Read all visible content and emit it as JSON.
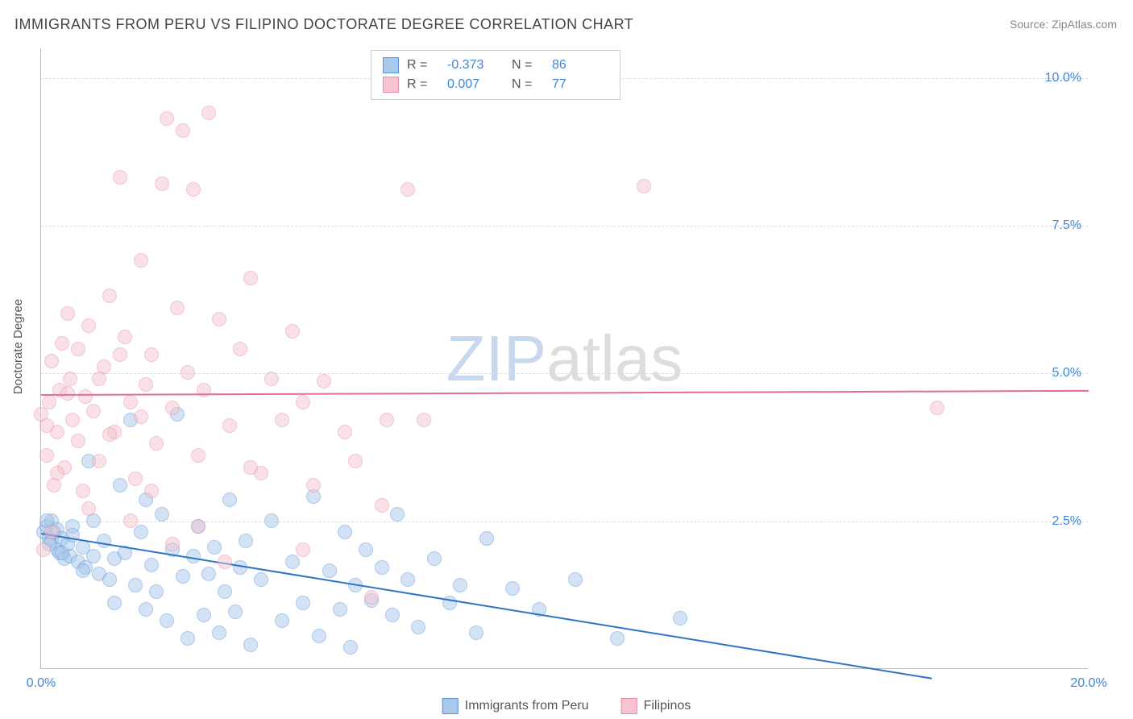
{
  "title": "IMMIGRANTS FROM PERU VS FILIPINO DOCTORATE DEGREE CORRELATION CHART",
  "source_label": "Source: ZipAtlas.com",
  "y_axis_title": "Doctorate Degree",
  "watermark": {
    "part1": "ZIP",
    "part2": "atlas"
  },
  "chart": {
    "type": "scatter",
    "xlim": [
      0,
      20
    ],
    "ylim": [
      0,
      10.5
    ],
    "x_ticks": [
      {
        "v": 0,
        "label": "0.0%"
      },
      {
        "v": 20,
        "label": "20.0%"
      }
    ],
    "y_ticks": [
      {
        "v": 2.5,
        "label": "2.5%"
      },
      {
        "v": 5.0,
        "label": "5.0%"
      },
      {
        "v": 7.5,
        "label": "7.5%"
      },
      {
        "v": 10.0,
        "label": "10.0%"
      }
    ],
    "background_color": "#ffffff",
    "grid_color": "#dddddd",
    "point_radius": 9,
    "point_opacity": 0.5,
    "series": [
      {
        "name": "Immigrants from Peru",
        "fill": "#a8c8ec",
        "stroke": "#5b93d4",
        "R": "-0.373",
        "N": "86",
        "trend": {
          "x1": 0,
          "y1": 2.3,
          "x2": 17,
          "y2": -0.15,
          "color": "#2d74c4",
          "width": 2
        },
        "points": [
          [
            0.05,
            2.3
          ],
          [
            0.1,
            2.4
          ],
          [
            0.15,
            2.2
          ],
          [
            0.2,
            2.5
          ],
          [
            0.2,
            2.15
          ],
          [
            0.25,
            2.3
          ],
          [
            0.3,
            2.0
          ],
          [
            0.3,
            2.35
          ],
          [
            0.35,
            1.95
          ],
          [
            0.4,
            2.2
          ],
          [
            0.45,
            1.85
          ],
          [
            0.5,
            2.1
          ],
          [
            0.55,
            1.9
          ],
          [
            0.6,
            2.4
          ],
          [
            0.7,
            1.8
          ],
          [
            0.8,
            2.05
          ],
          [
            0.85,
            1.7
          ],
          [
            0.9,
            3.5
          ],
          [
            1.0,
            1.9
          ],
          [
            1.1,
            1.6
          ],
          [
            1.2,
            2.15
          ],
          [
            1.3,
            1.5
          ],
          [
            1.4,
            1.85
          ],
          [
            1.5,
            3.1
          ],
          [
            1.6,
            1.95
          ],
          [
            1.7,
            4.2
          ],
          [
            1.8,
            1.4
          ],
          [
            1.9,
            2.3
          ],
          [
            2.0,
            1.0
          ],
          [
            2.1,
            1.75
          ],
          [
            2.2,
            1.3
          ],
          [
            2.3,
            2.6
          ],
          [
            2.4,
            0.8
          ],
          [
            2.5,
            2.0
          ],
          [
            2.6,
            4.3
          ],
          [
            2.7,
            1.55
          ],
          [
            2.8,
            0.5
          ],
          [
            2.9,
            1.9
          ],
          [
            3.0,
            2.4
          ],
          [
            3.1,
            0.9
          ],
          [
            3.2,
            1.6
          ],
          [
            3.3,
            2.05
          ],
          [
            3.4,
            0.6
          ],
          [
            3.5,
            1.3
          ],
          [
            3.6,
            2.85
          ],
          [
            3.7,
            0.95
          ],
          [
            3.8,
            1.7
          ],
          [
            3.9,
            2.15
          ],
          [
            4.0,
            0.4
          ],
          [
            4.2,
            1.5
          ],
          [
            4.4,
            2.5
          ],
          [
            4.6,
            0.8
          ],
          [
            4.8,
            1.8
          ],
          [
            5.0,
            1.1
          ],
          [
            5.2,
            2.9
          ],
          [
            5.3,
            0.55
          ],
          [
            5.5,
            1.65
          ],
          [
            5.7,
            1.0
          ],
          [
            5.8,
            2.3
          ],
          [
            5.9,
            0.35
          ],
          [
            6.0,
            1.4
          ],
          [
            6.2,
            2.0
          ],
          [
            6.3,
            1.15
          ],
          [
            6.5,
            1.7
          ],
          [
            6.7,
            0.9
          ],
          [
            6.8,
            2.6
          ],
          [
            7.0,
            1.5
          ],
          [
            7.2,
            0.7
          ],
          [
            7.5,
            1.85
          ],
          [
            7.8,
            1.1
          ],
          [
            8.0,
            1.4
          ],
          [
            8.3,
            0.6
          ],
          [
            8.5,
            2.2
          ],
          [
            9.0,
            1.35
          ],
          [
            9.5,
            1.0
          ],
          [
            10.2,
            1.5
          ],
          [
            11.0,
            0.5
          ],
          [
            12.2,
            0.85
          ],
          [
            0.1,
            2.5
          ],
          [
            0.15,
            2.1
          ],
          [
            0.4,
            1.95
          ],
          [
            0.6,
            2.25
          ],
          [
            0.8,
            1.65
          ],
          [
            1.0,
            2.5
          ],
          [
            1.4,
            1.1
          ],
          [
            2.0,
            2.85
          ]
        ]
      },
      {
        "name": "Filipinos",
        "fill": "#f5c4d0",
        "stroke": "#e88ba5",
        "R": "0.007",
        "N": "77",
        "trend": {
          "x1": 0,
          "y1": 4.65,
          "x2": 20,
          "y2": 4.72,
          "color": "#e16f93",
          "width": 2
        },
        "points": [
          [
            0.0,
            4.3
          ],
          [
            0.05,
            2.0
          ],
          [
            0.1,
            3.6
          ],
          [
            0.15,
            4.5
          ],
          [
            0.2,
            2.3
          ],
          [
            0.2,
            5.2
          ],
          [
            0.25,
            3.1
          ],
          [
            0.3,
            4.0
          ],
          [
            0.35,
            4.7
          ],
          [
            0.4,
            5.5
          ],
          [
            0.45,
            3.4
          ],
          [
            0.5,
            6.0
          ],
          [
            0.55,
            4.9
          ],
          [
            0.6,
            4.2
          ],
          [
            0.7,
            5.4
          ],
          [
            0.8,
            3.0
          ],
          [
            0.85,
            4.6
          ],
          [
            0.9,
            5.8
          ],
          [
            1.0,
            4.35
          ],
          [
            1.1,
            3.5
          ],
          [
            1.2,
            5.1
          ],
          [
            1.3,
            6.3
          ],
          [
            1.4,
            4.0
          ],
          [
            1.5,
            8.3
          ],
          [
            1.6,
            5.6
          ],
          [
            1.7,
            4.5
          ],
          [
            1.8,
            3.2
          ],
          [
            1.9,
            6.9
          ],
          [
            2.0,
            4.8
          ],
          [
            2.1,
            5.3
          ],
          [
            2.2,
            3.8
          ],
          [
            2.3,
            8.2
          ],
          [
            2.4,
            9.3
          ],
          [
            2.5,
            4.4
          ],
          [
            2.6,
            6.1
          ],
          [
            2.7,
            9.1
          ],
          [
            2.8,
            5.0
          ],
          [
            2.9,
            8.1
          ],
          [
            3.0,
            3.6
          ],
          [
            3.1,
            4.7
          ],
          [
            3.2,
            9.4
          ],
          [
            3.4,
            5.9
          ],
          [
            3.6,
            4.1
          ],
          [
            3.8,
            5.4
          ],
          [
            4.0,
            6.6
          ],
          [
            4.2,
            3.3
          ],
          [
            4.4,
            4.9
          ],
          [
            4.6,
            4.2
          ],
          [
            4.8,
            5.7
          ],
          [
            5.0,
            4.5
          ],
          [
            5.2,
            3.1
          ],
          [
            5.4,
            4.85
          ],
          [
            5.8,
            4.0
          ],
          [
            6.0,
            3.5
          ],
          [
            6.3,
            1.2
          ],
          [
            6.6,
            4.2
          ],
          [
            7.0,
            8.1
          ],
          [
            7.3,
            4.2
          ],
          [
            11.5,
            8.15
          ],
          [
            17.1,
            4.4
          ],
          [
            0.1,
            4.1
          ],
          [
            0.3,
            3.3
          ],
          [
            0.5,
            4.65
          ],
          [
            0.7,
            3.85
          ],
          [
            0.9,
            2.7
          ],
          [
            1.1,
            4.9
          ],
          [
            1.3,
            3.95
          ],
          [
            1.5,
            5.3
          ],
          [
            1.7,
            2.5
          ],
          [
            1.9,
            4.25
          ],
          [
            2.1,
            3.0
          ],
          [
            2.5,
            2.1
          ],
          [
            3.0,
            2.4
          ],
          [
            3.5,
            1.8
          ],
          [
            4.0,
            3.4
          ],
          [
            5.0,
            2.0
          ],
          [
            6.5,
            2.75
          ]
        ]
      }
    ]
  },
  "legend_top": {
    "r_label": "R =",
    "n_label": "N ="
  },
  "legend_bottom": [
    {
      "swatch_fill": "#a8c8ec",
      "swatch_stroke": "#5b93d4"
    },
    {
      "swatch_fill": "#f5c4d0",
      "swatch_stroke": "#e88ba5"
    }
  ]
}
